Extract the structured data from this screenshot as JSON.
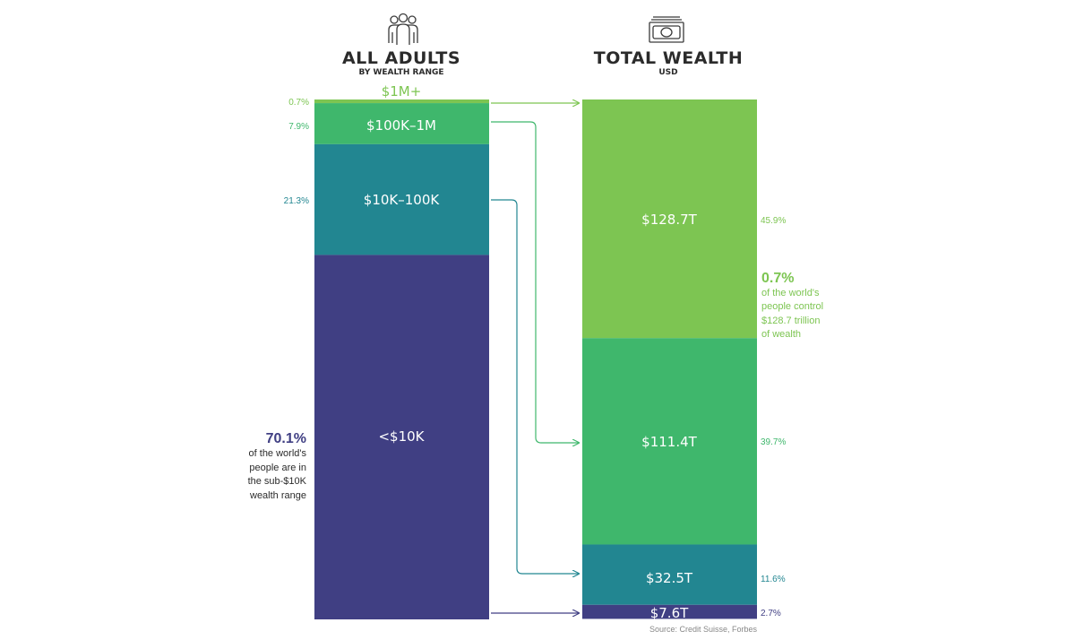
{
  "colors": {
    "top": "#7dc552",
    "upper": "#3fb76c",
    "middle": "#228691",
    "lower": "#403f83",
    "text_dark": "#2b2b2b",
    "grey": "#888888"
  },
  "headers": {
    "left_title": "ALL ADULTS",
    "left_subtitle": "BY WEALTH RANGE",
    "right_title": "TOTAL WEALTH",
    "right_subtitle": "USD",
    "left_icon": "people-icon",
    "right_icon": "banknote-icon"
  },
  "source": "Source: Credit Suisse, Forbes",
  "chart_data": {
    "type": "stacked-bar",
    "segments": [
      {
        "key": "top",
        "range_label": "$1M+",
        "adults_pct": 0.7,
        "adults_pct_label": "0.7%",
        "wealth_value": 128.7,
        "wealth_label": "$128.7T",
        "wealth_pct": 45.9,
        "wealth_pct_label": "45.9%"
      },
      {
        "key": "upper",
        "range_label": "$100K–1M",
        "adults_pct": 7.9,
        "adults_pct_label": "7.9%",
        "wealth_value": 111.4,
        "wealth_label": "$111.4T",
        "wealth_pct": 39.7,
        "wealth_pct_label": "39.7%"
      },
      {
        "key": "middle",
        "range_label": "$10K–100K",
        "adults_pct": 21.3,
        "adults_pct_label": "21.3%",
        "wealth_value": 32.5,
        "wealth_label": "$32.5T",
        "wealth_pct": 11.6,
        "wealth_pct_label": "11.6%"
      },
      {
        "key": "lower",
        "range_label": "<$10K",
        "adults_pct": 70.1,
        "adults_pct_label": "70.1%",
        "wealth_value": 7.6,
        "wealth_label": "$7.6T",
        "wealth_pct": 2.7,
        "wealth_pct_label": "2.7%"
      }
    ],
    "annotations": {
      "top": {
        "pct": "0.7%",
        "lines": [
          "of the world's",
          "people control",
          "$128.7 trillion",
          "of wealth"
        ]
      },
      "lower": {
        "pct": "70.1%",
        "lines": [
          "of the world's",
          "people are in",
          "the sub-$10K",
          "wealth range"
        ]
      }
    }
  }
}
